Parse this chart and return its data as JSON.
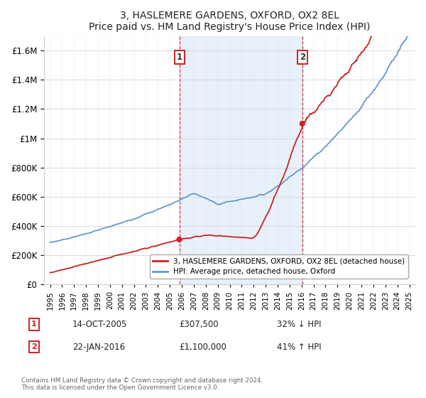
{
  "title": "3, HASLEMERE GARDENS, OXFORD, OX2 8EL",
  "subtitle": "Price paid vs. HM Land Registry's House Price Index (HPI)",
  "ylim": [
    0,
    1700000
  ],
  "yticks": [
    0,
    200000,
    400000,
    600000,
    800000,
    1000000,
    1200000,
    1400000,
    1600000
  ],
  "x_start_year": 1995,
  "x_end_year": 2025,
  "transaction1_date": 2005.79,
  "transaction1_price": 307500,
  "transaction1_label": "1",
  "transaction1_text": "14-OCT-2005",
  "transaction1_amount": "£307,500",
  "transaction1_hpi": "32% ↓ HPI",
  "transaction2_date": 2016.06,
  "transaction2_price": 1100000,
  "transaction2_label": "2",
  "transaction2_text": "22-JAN-2016",
  "transaction2_amount": "£1,100,000",
  "transaction2_hpi": "41% ↑ HPI",
  "hpi_line_color": "#6699cc",
  "price_line_color": "#cc2222",
  "dashed_line_color": "#cc2222",
  "marker_color": "#cc2222",
  "shaded_region_color": "#cce0f5",
  "legend_line1": "3, HASLEMERE GARDENS, OXFORD, OX2 8EL (detached house)",
  "legend_line2": "HPI: Average price, detached house, Oxford",
  "footer": "Contains HM Land Registry data © Crown copyright and database right 2024.\nThis data is licensed under the Open Government Licence v3.0."
}
